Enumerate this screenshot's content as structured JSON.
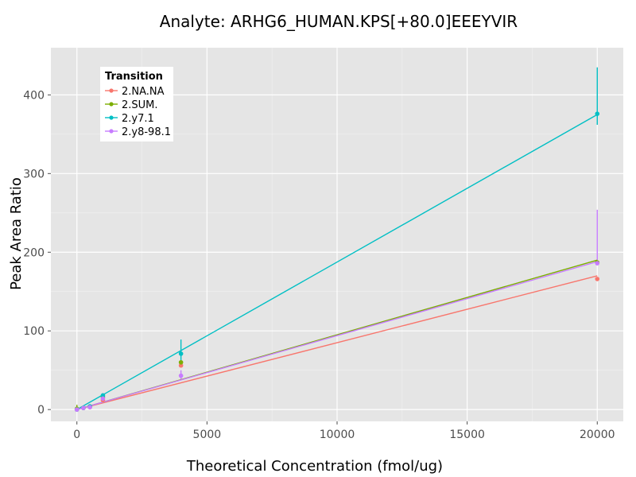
{
  "chart_data": {
    "type": "line",
    "title": "Analyte: ARHG6_HUMAN.KPS[+80.0]EEEYVIR",
    "xlabel": "Theoretical Concentration (fmol/ug)",
    "ylabel": "Peak Area Ratio",
    "xlim": [
      -1000,
      21000
    ],
    "ylim": [
      -15,
      460
    ],
    "x_ticks": [
      0,
      5000,
      10000,
      15000,
      20000
    ],
    "x_tick_labels": [
      "0",
      "5000",
      "10000",
      "15000",
      "20000"
    ],
    "y_ticks": [
      0,
      100,
      200,
      300,
      400
    ],
    "y_tick_labels": [
      "0",
      "100",
      "200",
      "300",
      "400"
    ],
    "grid": true,
    "legend": {
      "title": "Transition",
      "position": "top-left"
    },
    "series": [
      {
        "name": "2.NA.NA",
        "color": "#F8766D",
        "fit": [
          [
            0,
            0
          ],
          [
            20000,
            170
          ]
        ],
        "points": [
          {
            "x": 0,
            "y": 0
          },
          {
            "x": 250,
            "y": 2
          },
          {
            "x": 500,
            "y": 3
          },
          {
            "x": 1000,
            "y": 12
          },
          {
            "x": 4000,
            "y": 56
          },
          {
            "x": 20000,
            "y": 166
          }
        ],
        "errorbars": []
      },
      {
        "name": "2.SUM.",
        "color": "#7CAE00",
        "fit": [
          [
            0,
            0
          ],
          [
            20000,
            190
          ]
        ],
        "points": [
          {
            "x": 0,
            "y": 1
          },
          {
            "x": 250,
            "y": 2
          },
          {
            "x": 500,
            "y": 4
          },
          {
            "x": 1000,
            "y": 16
          },
          {
            "x": 4000,
            "y": 60
          },
          {
            "x": 20000,
            "y": 187
          }
        ],
        "errorbars": [
          {
            "x": 0,
            "low": -2,
            "high": 6
          }
        ]
      },
      {
        "name": "2.y7.1",
        "color": "#00BFC4",
        "fit": [
          [
            0,
            0
          ],
          [
            20000,
            375
          ]
        ],
        "points": [
          {
            "x": 0,
            "y": 0
          },
          {
            "x": 250,
            "y": 2
          },
          {
            "x": 500,
            "y": 4
          },
          {
            "x": 1000,
            "y": 18
          },
          {
            "x": 4000,
            "y": 71
          },
          {
            "x": 20000,
            "y": 376
          }
        ],
        "errorbars": [
          {
            "x": 4000,
            "low": 58,
            "high": 89
          },
          {
            "x": 20000,
            "low": 362,
            "high": 435
          }
        ]
      },
      {
        "name": "2.y8-98.1",
        "color": "#C77CFF",
        "fit": [
          [
            0,
            0
          ],
          [
            20000,
            188
          ]
        ],
        "points": [
          {
            "x": 0,
            "y": 0
          },
          {
            "x": 250,
            "y": 2
          },
          {
            "x": 500,
            "y": 3
          },
          {
            "x": 1000,
            "y": 14
          },
          {
            "x": 4000,
            "y": 43
          },
          {
            "x": 20000,
            "y": 186
          }
        ],
        "errorbars": [
          {
            "x": 4000,
            "low": 38,
            "high": 50
          },
          {
            "x": 20000,
            "low": 186,
            "high": 254
          }
        ]
      }
    ]
  }
}
